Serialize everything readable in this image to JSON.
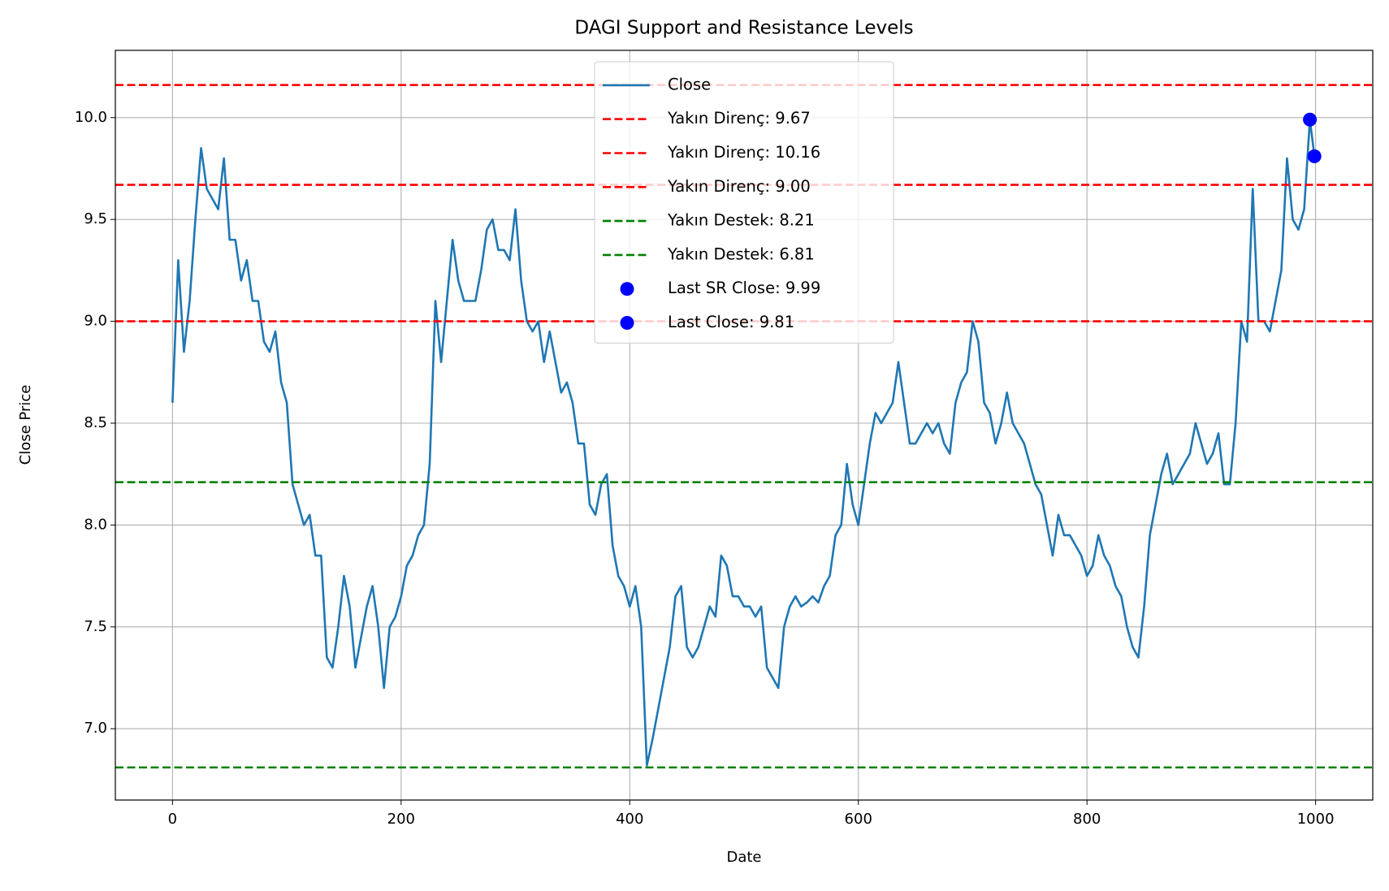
{
  "chart_data": {
    "type": "line",
    "title": "DAGI Support and Resistance Levels",
    "xlabel": "Date",
    "ylabel": "Close Price",
    "x": [
      0,
      5,
      10,
      15,
      20,
      25,
      30,
      35,
      40,
      45,
      50,
      55,
      60,
      65,
      70,
      75,
      80,
      85,
      90,
      95,
      100,
      105,
      110,
      115,
      120,
      125,
      130,
      135,
      140,
      145,
      150,
      155,
      160,
      165,
      170,
      175,
      180,
      185,
      190,
      195,
      200,
      205,
      210,
      215,
      220,
      225,
      230,
      235,
      240,
      245,
      250,
      255,
      260,
      265,
      270,
      275,
      280,
      285,
      290,
      295,
      300,
      305,
      310,
      315,
      320,
      325,
      330,
      335,
      340,
      345,
      350,
      355,
      360,
      365,
      370,
      375,
      380,
      385,
      390,
      395,
      400,
      405,
      410,
      415,
      420,
      425,
      430,
      435,
      440,
      445,
      450,
      455,
      460,
      465,
      470,
      475,
      480,
      485,
      490,
      495,
      500,
      505,
      510,
      515,
      520,
      525,
      530,
      535,
      540,
      545,
      550,
      555,
      560,
      565,
      570,
      575,
      580,
      585,
      590,
      595,
      600,
      605,
      610,
      615,
      620,
      625,
      630,
      635,
      640,
      645,
      650,
      655,
      660,
      665,
      670,
      675,
      680,
      685,
      690,
      695,
      700,
      705,
      710,
      715,
      720,
      725,
      730,
      735,
      740,
      745,
      750,
      755,
      760,
      765,
      770,
      775,
      780,
      785,
      790,
      795,
      800,
      805,
      810,
      815,
      820,
      825,
      830,
      835,
      840,
      845,
      850,
      855,
      860,
      865,
      870,
      875,
      880,
      885,
      890,
      895,
      900,
      905,
      910,
      915,
      920,
      925,
      930,
      935,
      940,
      945,
      950,
      955,
      960,
      965,
      970,
      975,
      980,
      985,
      990,
      995,
      999
    ],
    "series": [
      {
        "name": "Close",
        "color": "#1f77b4",
        "values": [
          8.6,
          9.3,
          8.85,
          9.1,
          9.5,
          9.85,
          9.65,
          9.6,
          9.55,
          9.8,
          9.4,
          9.4,
          9.2,
          9.3,
          9.1,
          9.1,
          8.9,
          8.85,
          8.95,
          8.7,
          8.6,
          8.2,
          8.1,
          8.0,
          8.05,
          7.85,
          7.85,
          7.35,
          7.3,
          7.5,
          7.75,
          7.6,
          7.3,
          7.45,
          7.6,
          7.7,
          7.5,
          7.2,
          7.5,
          7.55,
          7.65,
          7.8,
          7.85,
          7.95,
          8.0,
          8.3,
          9.1,
          8.8,
          9.1,
          9.4,
          9.2,
          9.1,
          9.1,
          9.1,
          9.25,
          9.45,
          9.5,
          9.35,
          9.35,
          9.3,
          9.55,
          9.2,
          9.0,
          8.95,
          9.0,
          8.8,
          8.95,
          8.8,
          8.65,
          8.7,
          8.6,
          8.4,
          8.4,
          8.1,
          8.05,
          8.2,
          8.25,
          7.9,
          7.75,
          7.7,
          7.6,
          7.7,
          7.5,
          6.82,
          6.95,
          7.1,
          7.25,
          7.4,
          7.65,
          7.7,
          7.4,
          7.35,
          7.4,
          7.5,
          7.6,
          7.55,
          7.85,
          7.8,
          7.65,
          7.65,
          7.6,
          7.6,
          7.55,
          7.6,
          7.3,
          7.25,
          7.2,
          7.5,
          7.6,
          7.65,
          7.6,
          7.62,
          7.65,
          7.62,
          7.7,
          7.75,
          7.95,
          8.0,
          8.3,
          8.1,
          8.0,
          8.2,
          8.4,
          8.55,
          8.5,
          8.55,
          8.6,
          8.8,
          8.6,
          8.4,
          8.4,
          8.45,
          8.5,
          8.45,
          8.5,
          8.4,
          8.35,
          8.6,
          8.7,
          8.75,
          9.0,
          8.9,
          8.6,
          8.55,
          8.4,
          8.5,
          8.65,
          8.5,
          8.45,
          8.4,
          8.3,
          8.2,
          8.15,
          8.0,
          7.85,
          8.05,
          7.95,
          7.95,
          7.9,
          7.85,
          7.75,
          7.8,
          7.95,
          7.85,
          7.8,
          7.7,
          7.65,
          7.5,
          7.4,
          7.35,
          7.6,
          7.95,
          8.1,
          8.25,
          8.35,
          8.2,
          8.25,
          8.3,
          8.35,
          8.5,
          8.4,
          8.3,
          8.35,
          8.45,
          8.2,
          8.2,
          8.5,
          9.0,
          8.9,
          9.65,
          9.0,
          9.0,
          8.95,
          9.1,
          9.25,
          9.8,
          9.5,
          9.45,
          9.55,
          9.99,
          9.81
        ]
      }
    ],
    "hlines": [
      {
        "name": "Yakın Direnç: 9.67",
        "color": "#ff0000",
        "value": 9.67
      },
      {
        "name": "Yakın Direnç: 10.16",
        "color": "#ff0000",
        "value": 10.16
      },
      {
        "name": "Yakın Direnç: 9.00",
        "color": "#ff0000",
        "value": 9.0
      },
      {
        "name": "Yakın Destek: 8.21",
        "color": "#008000",
        "value": 8.21
      },
      {
        "name": "Yakın Destek: 6.81",
        "color": "#008000",
        "value": 6.81
      }
    ],
    "points": [
      {
        "name": "Last SR Close: 9.99",
        "color": "#0000ff",
        "x": 995,
        "y": 9.99
      },
      {
        "name": "Last Close: 9.81",
        "color": "#0000ff",
        "x": 999,
        "y": 9.81
      }
    ],
    "xlim": [
      -50,
      1050
    ],
    "ylim": [
      6.65,
      10.33
    ],
    "xticks": [
      0,
      200,
      400,
      600,
      800,
      1000
    ],
    "yticks": [
      {
        "value": 7,
        "label": "7.0"
      },
      7.5,
      {
        "value": 8,
        "label": "8.0"
      },
      8.5,
      {
        "value": 9,
        "label": "9.0"
      },
      9.5,
      {
        "value": 10,
        "label": "10.0"
      }
    ],
    "grid": true,
    "legend": "upper center"
  }
}
